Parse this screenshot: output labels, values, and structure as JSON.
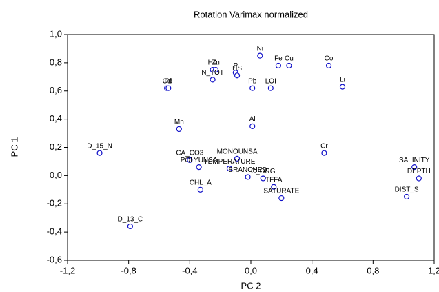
{
  "chart_data": {
    "type": "scatter",
    "title": "Rotation Varimax normalized",
    "x_label": "PC 2",
    "y_label": "PC 1",
    "labels": [
      "Ni",
      "Fe",
      "Cu",
      "Co",
      "Li",
      "HA",
      "Zn",
      "N_TOT",
      "P",
      "HS",
      "Pb",
      "LOI",
      "Cd",
      "Fd",
      "Mn",
      "Al",
      "D_15_N",
      "Cr",
      "CA_CO3",
      "POLYUNSA",
      "MONOUNSA",
      "TEMPERATURE",
      "BRANCHED",
      "C_ORG",
      "TFFA",
      "SATURATE",
      "CHL_A",
      "D_13_C",
      "SALINITY",
      "DEPTH",
      "DIST_S"
    ],
    "x": [
      0.06,
      0.18,
      0.25,
      0.51,
      0.6,
      -0.25,
      -0.23,
      -0.25,
      -0.1,
      -0.09,
      0.01,
      0.13,
      -0.55,
      -0.54,
      -0.47,
      0.01,
      -0.99,
      0.48,
      -0.4,
      -0.34,
      -0.09,
      -0.14,
      -0.02,
      0.08,
      0.15,
      0.2,
      -0.33,
      -0.79,
      1.07,
      1.1,
      1.02
    ],
    "values": [
      0.85,
      0.78,
      0.78,
      0.78,
      0.63,
      0.75,
      0.75,
      0.68,
      0.73,
      0.71,
      0.62,
      0.62,
      0.62,
      0.62,
      0.33,
      0.35,
      0.16,
      0.16,
      0.11,
      0.06,
      0.12,
      0.05,
      -0.01,
      -0.02,
      -0.08,
      -0.16,
      -0.1,
      -0.36,
      0.06,
      -0.02,
      -0.15
    ],
    "color": "#1010c8",
    "xlim": [
      -1.2,
      1.2
    ],
    "xticks": [
      {
        "value": -1.2,
        "label": "-1,2"
      },
      {
        "value": -0.8,
        "label": "-0,8"
      },
      {
        "value": -0.4,
        "label": "-0,4"
      },
      {
        "value": 0,
        "label": "0,0"
      },
      {
        "value": 0.4,
        "label": "0,4"
      },
      {
        "value": 0.8,
        "label": "0,8"
      },
      {
        "value": 1.2,
        "label": "1,2"
      }
    ],
    "ylim": [
      -0.6,
      1.0
    ],
    "yticks": [
      {
        "value": -0.6,
        "label": "-0,6"
      },
      {
        "value": -0.4,
        "label": "-0,4"
      },
      {
        "value": -0.2,
        "label": "-0,2"
      },
      {
        "value": 0,
        "label": "0,0"
      },
      {
        "value": 0.2,
        "label": "0,2"
      },
      {
        "value": 0.4,
        "label": "0,4"
      },
      {
        "value": 0.6,
        "label": "0,6"
      },
      {
        "value": 0.8,
        "label": "0,8"
      },
      {
        "value": 1.0,
        "label": "1,0"
      }
    ],
    "grid": false
  }
}
